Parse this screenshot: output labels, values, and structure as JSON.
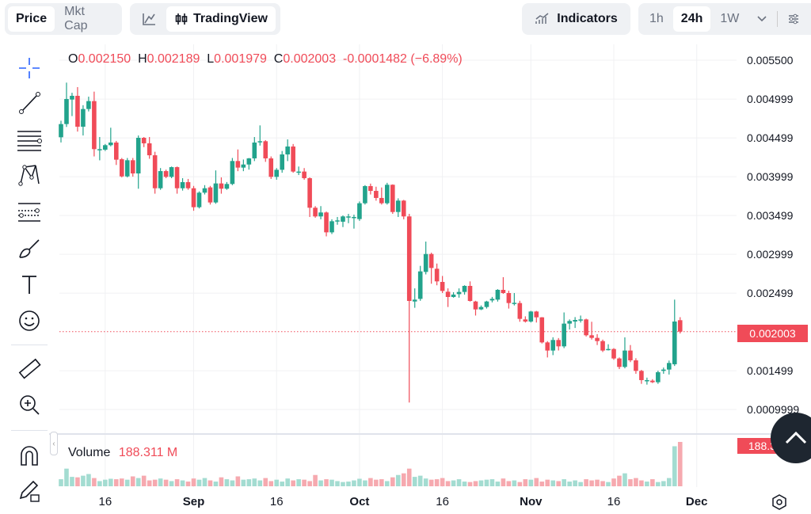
{
  "toolbar": {
    "price_tab": "Price",
    "mktcap_tab": "Mkt Cap",
    "tradingview_label": "TradingView",
    "indicators_label": "Indicators",
    "intervals": [
      "1h",
      "24h",
      "1W"
    ],
    "active_interval": "24h"
  },
  "legend": {
    "o_label": "O",
    "o": "0.002150",
    "h_label": "H",
    "h": "0.002189",
    "l_label": "L",
    "l": "0.001979",
    "c_label": "C",
    "c": "0.002003",
    "change": "-0.0001482 (−6.89%)"
  },
  "volume": {
    "label": "Volume",
    "value": "188.311 M",
    "badge": "188.311M"
  },
  "current_price_badge": "0.002003",
  "colors": {
    "up": "#22a38c",
    "down": "#f04b58",
    "up_volume": "#a3dcd1",
    "down_volume": "#f6a9af"
  },
  "chart_data": {
    "type": "candlestick",
    "y_ticks": [
      "0.005500",
      "0.004999",
      "0.004499",
      "0.003999",
      "0.003499",
      "0.002999",
      "0.002499",
      "0.001499",
      "0.0009999"
    ],
    "ylim": [
      0.00088,
      0.0057
    ],
    "x_ticks": [
      {
        "label": "16",
        "index": 8
      },
      {
        "label": "Sep",
        "index": 24,
        "bold": true
      },
      {
        "label": "16",
        "index": 39
      },
      {
        "label": "Oct",
        "index": 54,
        "bold": true
      },
      {
        "label": "16",
        "index": 69
      },
      {
        "label": "Nov",
        "index": 85,
        "bold": true
      },
      {
        "label": "16",
        "index": 100
      },
      {
        "label": "Dec",
        "index": 115,
        "bold": true
      }
    ],
    "grid": true,
    "last_price": 0.002003,
    "ohlc": [
      [
        0.004507,
        0.00472,
        0.00444,
        0.004677
      ],
      [
        0.004677,
        0.005211,
        0.00464,
        0.005
      ],
      [
        0.004993,
        0.00508,
        0.00478,
        0.005041
      ],
      [
        0.005041,
        0.005153,
        0.00458,
        0.004643
      ],
      [
        0.004643,
        0.00492,
        0.00453,
        0.004871
      ],
      [
        0.004871,
        0.00503,
        0.00484,
        0.004973
      ],
      [
        0.004973,
        0.005095,
        0.00426,
        0.004354
      ],
      [
        0.004354,
        0.00451,
        0.00421,
        0.004354
      ],
      [
        0.004347,
        0.00442,
        0.00433,
        0.004405
      ],
      [
        0.004405,
        0.00463,
        0.00439,
        0.004439
      ],
      [
        0.004439,
        0.00446,
        0.00415,
        0.004218
      ],
      [
        0.004224,
        0.00424,
        0.00399,
        0.004003
      ],
      [
        0.004003,
        0.00424,
        0.00399,
        0.004211
      ],
      [
        0.004211,
        0.00424,
        0.004,
        0.004041
      ],
      [
        0.004041,
        0.00453,
        0.003844,
        0.0045
      ],
      [
        0.0045,
        0.00451,
        0.00438,
        0.004429
      ],
      [
        0.004429,
        0.00451,
        0.00423,
        0.004275
      ],
      [
        0.004275,
        0.00432,
        0.00378,
        0.00385
      ],
      [
        0.00385,
        0.00411,
        0.00383,
        0.004071
      ],
      [
        0.004071,
        0.00409,
        0.00398,
        0.003997
      ],
      [
        0.003997,
        0.00413,
        0.00398,
        0.004122
      ],
      [
        0.004122,
        0.00413,
        0.00378,
        0.00385
      ],
      [
        0.00385,
        0.00398,
        0.00382,
        0.003929
      ],
      [
        0.003929,
        0.00397,
        0.00383,
        0.00385
      ],
      [
        0.00385,
        0.00388,
        0.00356,
        0.003606
      ],
      [
        0.003606,
        0.00381,
        0.00359,
        0.003793
      ],
      [
        0.003793,
        0.00389,
        0.00377,
        0.00385
      ],
      [
        0.003861,
        0.00388,
        0.00364,
        0.003667
      ],
      [
        0.003667,
        0.00408,
        0.00365,
        0.003912
      ],
      [
        0.003912,
        0.00399,
        0.00378,
        0.003844
      ],
      [
        0.003844,
        0.00393,
        0.00383,
        0.003905
      ],
      [
        0.003905,
        0.00424,
        0.00389,
        0.004201
      ],
      [
        0.004201,
        0.00435,
        0.00407,
        0.004116
      ],
      [
        0.004116,
        0.00422,
        0.00407,
        0.004156
      ],
      [
        0.004156,
        0.00424,
        0.00409,
        0.004235
      ],
      [
        0.004235,
        0.00451,
        0.0042,
        0.004439
      ],
      [
        0.004456,
        0.00466,
        0.0044,
        0.004456
      ],
      [
        0.004456,
        0.00447,
        0.00419,
        0.004235
      ],
      [
        0.004235,
        0.00426,
        0.00397,
        0.003997
      ],
      [
        0.003997,
        0.00411,
        0.00396,
        0.004088
      ],
      [
        0.004088,
        0.00433,
        0.00405,
        0.004286
      ],
      [
        0.004286,
        0.00448,
        0.0042,
        0.004388
      ],
      [
        0.004388,
        0.00442,
        0.00405,
        0.004065
      ],
      [
        0.004065,
        0.00413,
        0.00402,
        0.004065
      ],
      [
        0.004065,
        0.00411,
        0.00396,
        0.00398
      ],
      [
        0.00398,
        0.00399,
        0.00348,
        0.003599
      ],
      [
        0.003599,
        0.00362,
        0.00347,
        0.003487
      ],
      [
        0.003487,
        0.00362,
        0.00345,
        0.003538
      ],
      [
        0.003538,
        0.00355,
        0.00323,
        0.003282
      ],
      [
        0.003282,
        0.00345,
        0.00326,
        0.003425
      ],
      [
        0.003436,
        0.00348,
        0.00338,
        0.003436
      ],
      [
        0.003419,
        0.0035,
        0.00335,
        0.003487
      ],
      [
        0.003487,
        0.00352,
        0.0034,
        0.003487
      ],
      [
        0.00348,
        0.00351,
        0.00333,
        0.00348
      ],
      [
        0.003453,
        0.00368,
        0.00343,
        0.003657
      ],
      [
        0.003657,
        0.00389,
        0.00364,
        0.003878
      ],
      [
        0.003878,
        0.00391,
        0.00377,
        0.003816
      ],
      [
        0.003816,
        0.00387,
        0.00369,
        0.003725
      ],
      [
        0.003725,
        0.00386,
        0.00364,
        0.003657
      ],
      [
        0.003657,
        0.00392,
        0.00364,
        0.003895
      ],
      [
        0.003895,
        0.0039,
        0.00352,
        0.003544
      ],
      [
        0.003544,
        0.00372,
        0.00348,
        0.003691
      ],
      [
        0.003691,
        0.0037,
        0.00345,
        0.003487
      ],
      [
        0.003487,
        0.00352,
        0.001089,
        0.002398
      ],
      [
        0.002391,
        0.00256,
        0.00231,
        0.002415
      ],
      [
        0.002425,
        0.00285,
        0.0024,
        0.002779
      ],
      [
        0.002772,
        0.003163,
        0.00274,
        0.003003
      ],
      [
        0.003003,
        0.00302,
        0.00262,
        0.002823
      ],
      [
        0.002813,
        0.00288,
        0.0026,
        0.00265
      ],
      [
        0.002643,
        0.00272,
        0.0025,
        0.002527
      ],
      [
        0.002517,
        0.00256,
        0.00232,
        0.002449
      ],
      [
        0.002449,
        0.00251,
        0.00244,
        0.00248
      ],
      [
        0.002486,
        0.00256,
        0.00244,
        0.002514
      ],
      [
        0.002514,
        0.0026,
        0.00248,
        0.002592
      ],
      [
        0.002592,
        0.00265,
        0.00239,
        0.002398
      ],
      [
        0.002391,
        0.0024,
        0.00221,
        0.002289
      ],
      [
        0.002289,
        0.00234,
        0.00228,
        0.00232
      ],
      [
        0.00232,
        0.0024,
        0.0023,
        0.002391
      ],
      [
        0.002405,
        0.00245,
        0.00238,
        0.002425
      ],
      [
        0.002415,
        0.00255,
        0.00239,
        0.002541
      ],
      [
        0.002541,
        0.002704,
        0.00249,
        0.0025
      ],
      [
        0.0025,
        0.00253,
        0.0023,
        0.002371
      ],
      [
        0.002374,
        0.0025,
        0.00234,
        0.002374
      ],
      [
        0.002371,
        0.0024,
        0.00213,
        0.002167
      ],
      [
        0.00216,
        0.0022,
        0.00212,
        0.002133
      ],
      [
        0.002133,
        0.00227,
        0.00212,
        0.002262
      ],
      [
        0.002262,
        0.00227,
        0.00212,
        0.002187
      ],
      [
        0.002187,
        0.00219,
        0.00185,
        0.001864
      ],
      [
        0.001864,
        0.00188,
        0.00167,
        0.001759
      ],
      [
        0.001759,
        0.00193,
        0.0017,
        0.001895
      ],
      [
        0.001895,
        0.00192,
        0.00176,
        0.001813
      ],
      [
        0.001813,
        0.00225,
        0.00179,
        0.002106
      ],
      [
        0.002106,
        0.00216,
        0.00203,
        0.00214
      ],
      [
        0.002133,
        0.00219,
        0.00205,
        0.002153
      ],
      [
        0.002153,
        0.00221,
        0.00212,
        0.00216
      ],
      [
        0.00216,
        0.00217,
        0.00194,
        0.001956
      ],
      [
        0.001956,
        0.00213,
        0.0019,
        0.001922
      ],
      [
        0.001922,
        0.00197,
        0.00183,
        0.001881
      ],
      [
        0.001881,
        0.0019,
        0.00174,
        0.001759
      ],
      [
        0.001779,
        0.00184,
        0.00176,
        0.001779
      ],
      [
        0.001779,
        0.00179,
        0.00164,
        0.001657
      ],
      [
        0.001657,
        0.00167,
        0.00152,
        0.001548
      ],
      [
        0.001548,
        0.001929,
        0.00153,
        0.001759
      ],
      [
        0.001759,
        0.00183,
        0.00161,
        0.001633
      ],
      [
        0.001633,
        0.00166,
        0.00146,
        0.001497
      ],
      [
        0.001497,
        0.00151,
        0.00133,
        0.001378
      ],
      [
        0.001378,
        0.00141,
        0.00132,
        0.001378
      ],
      [
        0.001371,
        0.00139,
        0.00134,
        0.001351
      ],
      [
        0.001351,
        0.0015,
        0.00133,
        0.00148
      ],
      [
        0.001497,
        0.00154,
        0.00146,
        0.001514
      ],
      [
        0.001514,
        0.00163,
        0.00145,
        0.001599
      ],
      [
        0.001582,
        0.002415,
        0.00156,
        0.002133
      ],
      [
        0.00215,
        0.002189,
        0.001979,
        0.002003
      ]
    ],
    "volume_millions": [
      30,
      75,
      40,
      38,
      45,
      52,
      35,
      22,
      28,
      32,
      30,
      33,
      28,
      42,
      35,
      45,
      25,
      28,
      33,
      28,
      22,
      30,
      25,
      20,
      33,
      28,
      35,
      25,
      20,
      38,
      30,
      25,
      42,
      28,
      30,
      33,
      25,
      35,
      22,
      28,
      20,
      33,
      25,
      30,
      28,
      22,
      48,
      25,
      30,
      28,
      22,
      18,
      20,
      25,
      32,
      25,
      35,
      28,
      30,
      22,
      38,
      48,
      55,
      75,
      40,
      45,
      33,
      28,
      30,
      35,
      22,
      25,
      30,
      20,
      18,
      22,
      25,
      28,
      30,
      20,
      33,
      22,
      25,
      18,
      30,
      28,
      35,
      20,
      28,
      25,
      22,
      30,
      20,
      25,
      18,
      30,
      25,
      28,
      22,
      18,
      33,
      45,
      55,
      30,
      35,
      25,
      20,
      30,
      18,
      22,
      35,
      170,
      188.311
    ]
  }
}
